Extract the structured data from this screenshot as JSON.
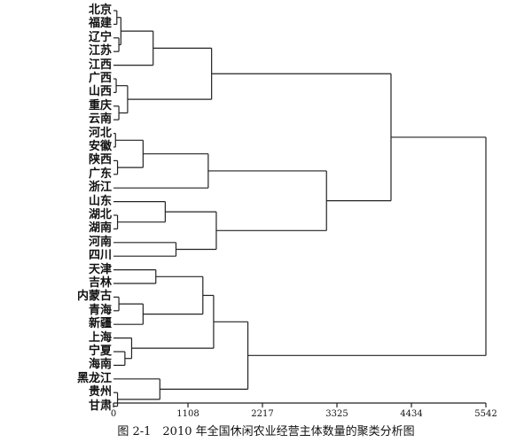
{
  "dendrogram": {
    "leaves": [
      "北京",
      "福建",
      "辽宁",
      "江苏",
      "江西",
      "广西",
      "山西",
      "重庆",
      "云南",
      "河北",
      "安徽",
      "陕西",
      "广东",
      "浙江",
      "山东",
      "湖北",
      "湖南",
      "河南",
      "四川",
      "天津",
      "吉林",
      "内蒙古",
      "青海",
      "新疆",
      "上海",
      "宁夏",
      "海南",
      "黑龙江",
      "贵州",
      "甘肃"
    ],
    "axis_ticks": [
      "0",
      "1108",
      "2217",
      "3325",
      "4434",
      "5542"
    ],
    "axis_max": 5542,
    "merges": [
      {
        "id": "c_bj_fj",
        "a": "L0",
        "b": "L1",
        "h": 50
      },
      {
        "id": "c_ln_js",
        "a": "L2",
        "b": "L3",
        "h": 80
      },
      {
        "id": "c_g1",
        "a": "c_bj_fj",
        "b": "c_ln_js",
        "h": 110
      },
      {
        "id": "c_g2",
        "a": "c_g1",
        "b": "L4",
        "h": 590
      },
      {
        "id": "c_gx_sx",
        "a": "L5",
        "b": "L6",
        "h": 40
      },
      {
        "id": "c_cq_yn",
        "a": "L7",
        "b": "L8",
        "h": 80
      },
      {
        "id": "c_g3",
        "a": "c_gx_sx",
        "b": "c_cq_yn",
        "h": 210
      },
      {
        "id": "c_top1",
        "a": "c_g2",
        "b": "c_g3",
        "h": 1460
      },
      {
        "id": "c_hb_ah",
        "a": "L9",
        "b": "L10",
        "h": 30
      },
      {
        "id": "c_sn_gd",
        "a": "L11",
        "b": "L12",
        "h": 60
      },
      {
        "id": "c_g4",
        "a": "c_hb_ah",
        "b": "c_sn_gd",
        "h": 440
      },
      {
        "id": "c_g5",
        "a": "c_g4",
        "b": "L13",
        "h": 1410
      },
      {
        "id": "c_hub_hun",
        "a": "L15",
        "b": "L16",
        "h": 60
      },
      {
        "id": "c_g6",
        "a": "L14",
        "b": "c_hub_hun",
        "h": 770
      },
      {
        "id": "c_hn_sc",
        "a": "L17",
        "b": "L18",
        "h": 930
      },
      {
        "id": "c_g7",
        "a": "c_g6",
        "b": "c_hn_sc",
        "h": 1530
      },
      {
        "id": "c_g8",
        "a": "c_g5",
        "b": "c_g7",
        "h": 3170
      },
      {
        "id": "c_top2",
        "a": "c_top1",
        "b": "c_g8",
        "h": 4130
      },
      {
        "id": "c_tj_jl",
        "a": "L19",
        "b": "L20",
        "h": 630
      },
      {
        "id": "c_nmg_qh",
        "a": "L21",
        "b": "L22",
        "h": 80
      },
      {
        "id": "c_g9",
        "a": "c_nmg_qh",
        "b": "L23",
        "h": 440
      },
      {
        "id": "c_g10",
        "a": "c_tj_jl",
        "b": "c_g9",
        "h": 1330
      },
      {
        "id": "c_nx_hn",
        "a": "L25",
        "b": "L26",
        "h": 170
      },
      {
        "id": "c_g11",
        "a": "L24",
        "b": "c_nx_hn",
        "h": 270
      },
      {
        "id": "c_g12",
        "a": "c_g10",
        "b": "c_g11",
        "h": 1490
      },
      {
        "id": "c_gz_gs",
        "a": "L28",
        "b": "L29",
        "h": 60
      },
      {
        "id": "c_g13",
        "a": "L27",
        "b": "c_gz_gs",
        "h": 690
      },
      {
        "id": "c_g14",
        "a": "c_g12",
        "b": "c_g13",
        "h": 2000
      },
      {
        "id": "c_root",
        "a": "c_top2",
        "b": "c_g14",
        "h": 5542
      }
    ]
  },
  "caption": "图 2-1　2010 年全国休闲农业经营主体数量的聚类分析图"
}
